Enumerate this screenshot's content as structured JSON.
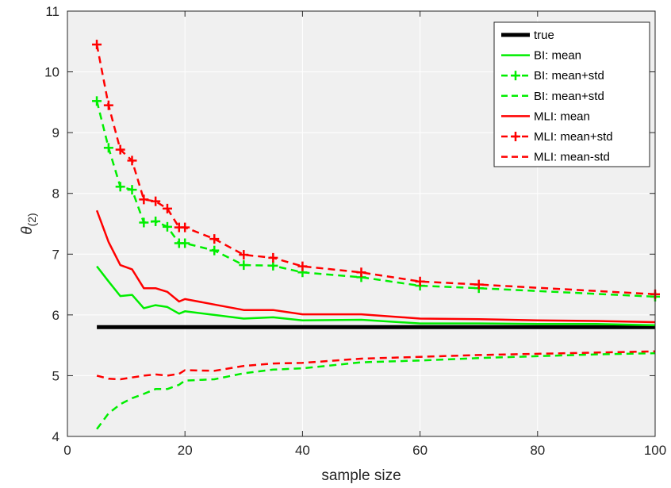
{
  "chart_data": {
    "type": "line",
    "xlabel": "sample size",
    "ylabel": {
      "base": "θ",
      "sub": "(2)"
    },
    "xlim": [
      0,
      100
    ],
    "ylim": [
      4,
      11
    ],
    "xticks": [
      0,
      20,
      40,
      60,
      80,
      100
    ],
    "yticks": [
      4,
      5,
      6,
      7,
      8,
      9,
      10,
      11
    ],
    "grid": true,
    "legend_position": "top-right",
    "series": [
      {
        "name": "true",
        "color": "#000000",
        "style": "solid",
        "marker": "none",
        "width": 5,
        "x": [
          5,
          100
        ],
        "y": [
          5.8,
          5.8
        ]
      },
      {
        "name": "BI: mean",
        "color": "#00ee00",
        "style": "solid",
        "marker": "none",
        "width": 2.5,
        "x": [
          5,
          7,
          9,
          11,
          13,
          15,
          17,
          19,
          20,
          25,
          30,
          35,
          40,
          50,
          60,
          70,
          80,
          90,
          100
        ],
        "y": [
          6.8,
          6.55,
          6.31,
          6.33,
          6.11,
          6.16,
          6.13,
          6.02,
          6.06,
          6.0,
          5.94,
          5.96,
          5.91,
          5.92,
          5.86,
          5.86,
          5.85,
          5.85,
          5.83
        ]
      },
      {
        "name": "BI: mean+std",
        "color": "#00ee00",
        "style": "dashed",
        "marker": "plus",
        "width": 2.5,
        "x": [
          5,
          7,
          9,
          11,
          13,
          15,
          17,
          19,
          20,
          25,
          30,
          35,
          40,
          50,
          60,
          70,
          100
        ],
        "y": [
          9.52,
          8.75,
          8.11,
          8.06,
          7.52,
          7.54,
          7.45,
          7.18,
          7.18,
          7.06,
          6.82,
          6.81,
          6.7,
          6.62,
          6.48,
          6.44,
          6.3
        ]
      },
      {
        "name": "BI: mean+std",
        "color": "#00ee00",
        "style": "dashed",
        "marker": "none",
        "width": 2.5,
        "x": [
          5,
          7,
          9,
          11,
          13,
          15,
          17,
          19,
          20,
          25,
          30,
          35,
          40,
          50,
          60,
          70,
          80,
          90,
          100
        ],
        "y": [
          4.12,
          4.38,
          4.53,
          4.63,
          4.7,
          4.78,
          4.78,
          4.85,
          4.92,
          4.94,
          5.04,
          5.1,
          5.12,
          5.22,
          5.25,
          5.29,
          5.32,
          5.35,
          5.37
        ]
      },
      {
        "name": "MLI: mean",
        "color": "#ff0000",
        "style": "solid",
        "marker": "none",
        "width": 2.5,
        "x": [
          5,
          7,
          9,
          11,
          13,
          15,
          17,
          19,
          20,
          25,
          30,
          35,
          40,
          50,
          60,
          70,
          80,
          90,
          100
        ],
        "y": [
          7.72,
          7.2,
          6.82,
          6.75,
          6.44,
          6.44,
          6.38,
          6.22,
          6.26,
          6.17,
          6.08,
          6.08,
          6.01,
          6.01,
          5.94,
          5.93,
          5.91,
          5.9,
          5.88
        ]
      },
      {
        "name": "MLI: mean+std",
        "color": "#ff0000",
        "style": "dashed",
        "marker": "plus",
        "width": 2.5,
        "x": [
          5,
          7,
          9,
          11,
          13,
          15,
          17,
          19,
          20,
          25,
          30,
          35,
          40,
          50,
          60,
          70,
          100
        ],
        "y": [
          10.45,
          9.45,
          8.72,
          8.54,
          7.9,
          7.87,
          7.75,
          7.44,
          7.44,
          7.25,
          6.99,
          6.94,
          6.8,
          6.7,
          6.55,
          6.5,
          6.34
        ]
      },
      {
        "name": "MLI: mean-std",
        "color": "#ff0000",
        "style": "dashed",
        "marker": "none",
        "width": 2.5,
        "x": [
          5,
          7,
          9,
          11,
          13,
          15,
          17,
          19,
          20,
          25,
          30,
          35,
          40,
          50,
          60,
          70,
          80,
          90,
          100
        ],
        "y": [
          5.0,
          4.95,
          4.94,
          4.97,
          5.0,
          5.02,
          5.0,
          5.03,
          5.09,
          5.08,
          5.16,
          5.2,
          5.21,
          5.28,
          5.31,
          5.34,
          5.36,
          5.38,
          5.4
        ]
      }
    ]
  }
}
